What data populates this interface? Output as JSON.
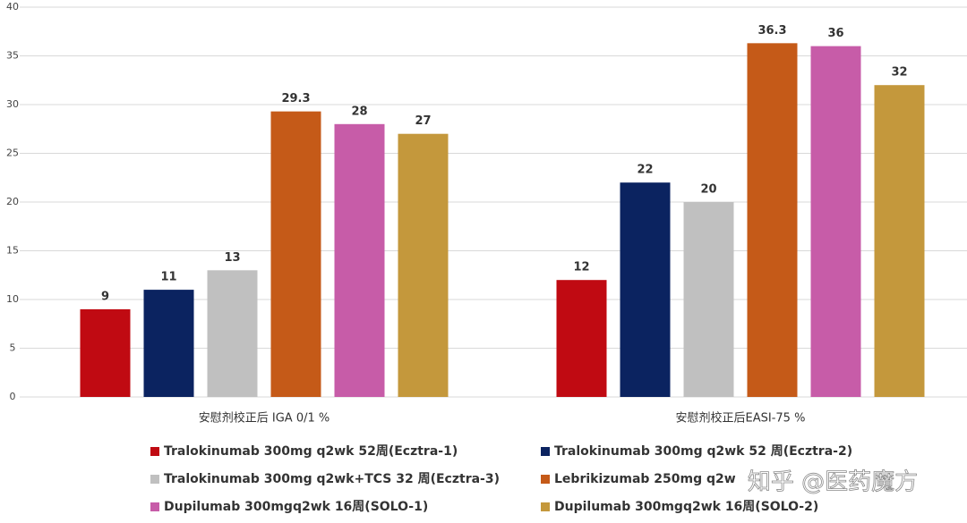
{
  "chart_data": {
    "type": "bar",
    "categories": [
      "安慰剂校正后 IGA 0/1 %",
      "安慰剂校正后EASI-75 %"
    ],
    "series": [
      {
        "name": "Tralokinumab 300mg q2wk 52周(Ecztra-1)",
        "color": "#c00a12",
        "values": [
          9,
          12
        ]
      },
      {
        "name": "Tralokinumab 300mg q2wk 52 周(Ecztra-2)",
        "color": "#0b2360",
        "values": [
          11,
          22
        ]
      },
      {
        "name": "Tralokinumab 300mg q2wk+TCS 32 周(Ecztra-3)",
        "color": "#c0c0c0",
        "values": [
          13,
          20
        ]
      },
      {
        "name": "Lebrikizumab 250mg q2w",
        "color": "#c55a18",
        "values": [
          29.3,
          36.3
        ]
      },
      {
        "name": "Dupilumab 300mgq2wk 16周(SOLO-1)",
        "color": "#c75ca8",
        "values": [
          28,
          36
        ]
      },
      {
        "name": "Dupilumab 300mgq2wk 16周(SOLO-2)",
        "color": "#c4983c",
        "values": [
          27,
          32
        ]
      }
    ],
    "ylim": [
      0,
      40
    ],
    "yticks": [
      0,
      5,
      10,
      15,
      20,
      25,
      30,
      35,
      40
    ],
    "grid": true,
    "watermark": "知乎 @医药魔方"
  }
}
